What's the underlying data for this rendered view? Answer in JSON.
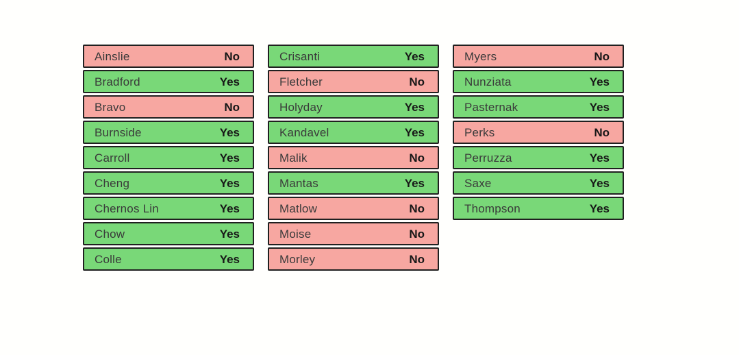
{
  "labels": {
    "yes": "Yes",
    "no": "No"
  },
  "colors": {
    "yes_bg": "#79d878",
    "no_bg": "#f7a7a1",
    "row_border": "#202020",
    "name_text": "#3a3a3a",
    "vote_text": "#171717",
    "page_bg": "#fffffd"
  },
  "columns": [
    {
      "items": [
        {
          "name": "Ainslie",
          "vote": "No"
        },
        {
          "name": "Bradford",
          "vote": "Yes"
        },
        {
          "name": "Bravo",
          "vote": "No"
        },
        {
          "name": "Burnside",
          "vote": "Yes"
        },
        {
          "name": "Carroll",
          "vote": "Yes"
        },
        {
          "name": "Cheng",
          "vote": "Yes"
        },
        {
          "name": "Chernos Lin",
          "vote": "Yes"
        },
        {
          "name": "Chow",
          "vote": "Yes"
        },
        {
          "name": "Colle",
          "vote": "Yes"
        }
      ]
    },
    {
      "items": [
        {
          "name": "Crisanti",
          "vote": "Yes"
        },
        {
          "name": "Fletcher",
          "vote": "No"
        },
        {
          "name": "Holyday",
          "vote": "Yes"
        },
        {
          "name": "Kandavel",
          "vote": "Yes"
        },
        {
          "name": "Malik",
          "vote": "No"
        },
        {
          "name": "Mantas",
          "vote": "Yes"
        },
        {
          "name": "Matlow",
          "vote": "No"
        },
        {
          "name": "Moise",
          "vote": "No"
        },
        {
          "name": "Morley",
          "vote": "No"
        }
      ]
    },
    {
      "items": [
        {
          "name": "Myers",
          "vote": "No"
        },
        {
          "name": "Nunziata",
          "vote": "Yes"
        },
        {
          "name": "Pasternak",
          "vote": "Yes"
        },
        {
          "name": "Perks",
          "vote": "No"
        },
        {
          "name": "Perruzza",
          "vote": "Yes"
        },
        {
          "name": "Saxe",
          "vote": "Yes"
        },
        {
          "name": "Thompson",
          "vote": "Yes"
        }
      ]
    }
  ]
}
